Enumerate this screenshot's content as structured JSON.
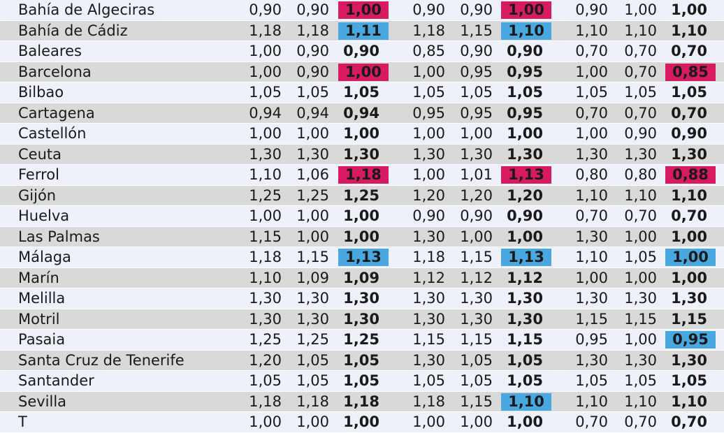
{
  "colors": {
    "row_light": "#eef1f9",
    "row_dark": "#d9d9d9",
    "magenta": "#d81b60",
    "blue": "#4aa8e0"
  },
  "rows": [
    {
      "port": "Bahía de Algeciras",
      "v": [
        "0,90",
        "0,90",
        "1,00",
        "0,90",
        "0,90",
        "1,00",
        "0,90",
        "1,00",
        "1,00"
      ],
      "hl": [
        null,
        null,
        "magenta",
        null,
        null,
        "magenta",
        null,
        null,
        null
      ]
    },
    {
      "port": "Bahía de Cádiz",
      "v": [
        "1,18",
        "1,18",
        "1,11",
        "1,18",
        "1,15",
        "1,10",
        "1,10",
        "1,10",
        "1,10"
      ],
      "hl": [
        null,
        null,
        "blue",
        null,
        null,
        "blue",
        null,
        null,
        null
      ]
    },
    {
      "port": "Baleares",
      "v": [
        "1,00",
        "0,90",
        "0,90",
        "0,85",
        "0,90",
        "0,90",
        "0,70",
        "0,70",
        "0,70"
      ],
      "hl": [
        null,
        null,
        null,
        null,
        null,
        null,
        null,
        null,
        null
      ]
    },
    {
      "port": "Barcelona",
      "v": [
        "1,00",
        "0,90",
        "1,00",
        "1,00",
        "0,95",
        "0,95",
        "1,00",
        "0,70",
        "0,85"
      ],
      "hl": [
        null,
        null,
        "magenta",
        null,
        null,
        null,
        null,
        null,
        "magenta"
      ]
    },
    {
      "port": "Bilbao",
      "v": [
        "1,05",
        "1,05",
        "1,05",
        "1,05",
        "1,05",
        "1,05",
        "1,05",
        "1,05",
        "1,05"
      ],
      "hl": [
        null,
        null,
        null,
        null,
        null,
        null,
        null,
        null,
        null
      ]
    },
    {
      "port": "Cartagena",
      "v": [
        "0,94",
        "0,94",
        "0,94",
        "0,95",
        "0,95",
        "0,95",
        "0,70",
        "0,70",
        "0,70"
      ],
      "hl": [
        null,
        null,
        null,
        null,
        null,
        null,
        null,
        null,
        null
      ]
    },
    {
      "port": "Castellón",
      "v": [
        "1,00",
        "1,00",
        "1,00",
        "1,00",
        "1,00",
        "1,00",
        "1,00",
        "0,90",
        "0,90"
      ],
      "hl": [
        null,
        null,
        null,
        null,
        null,
        null,
        null,
        null,
        null
      ]
    },
    {
      "port": "Ceuta",
      "v": [
        "1,30",
        "1,30",
        "1,30",
        "1,30",
        "1,30",
        "1,30",
        "1,30",
        "1,30",
        "1,30"
      ],
      "hl": [
        null,
        null,
        null,
        null,
        null,
        null,
        null,
        null,
        null
      ]
    },
    {
      "port": "Ferrol",
      "v": [
        "1,10",
        "1,06",
        "1,18",
        "1,00",
        "1,01",
        "1,13",
        "0,80",
        "0,80",
        "0,88"
      ],
      "hl": [
        null,
        null,
        "magenta",
        null,
        null,
        "magenta",
        null,
        null,
        "magenta"
      ]
    },
    {
      "port": "Gijón",
      "v": [
        "1,25",
        "1,25",
        "1,25",
        "1,20",
        "1,20",
        "1,20",
        "1,10",
        "1,10",
        "1,10"
      ],
      "hl": [
        null,
        null,
        null,
        null,
        null,
        null,
        null,
        null,
        null
      ]
    },
    {
      "port": "Huelva",
      "v": [
        "1,00",
        "1,00",
        "1,00",
        "0,90",
        "0,90",
        "0,90",
        "0,70",
        "0,70",
        "0,70"
      ],
      "hl": [
        null,
        null,
        null,
        null,
        null,
        null,
        null,
        null,
        null
      ]
    },
    {
      "port": "Las Palmas",
      "v": [
        "1,15",
        "1,00",
        "1,00",
        "1,30",
        "1,00",
        "1,00",
        "1,30",
        "1,00",
        "1,00"
      ],
      "hl": [
        null,
        null,
        null,
        null,
        null,
        null,
        null,
        null,
        null
      ]
    },
    {
      "port": "Málaga",
      "v": [
        "1,18",
        "1,15",
        "1,13",
        "1,18",
        "1,15",
        "1,13",
        "1,10",
        "1,05",
        "1,00"
      ],
      "hl": [
        null,
        null,
        "blue",
        null,
        null,
        "blue",
        null,
        null,
        "blue"
      ]
    },
    {
      "port": "Marín",
      "v": [
        "1,10",
        "1,09",
        "1,09",
        "1,12",
        "1,12",
        "1,12",
        "1,00",
        "1,00",
        "1,00"
      ],
      "hl": [
        null,
        null,
        null,
        null,
        null,
        null,
        null,
        null,
        null
      ]
    },
    {
      "port": "Melilla",
      "v": [
        "1,30",
        "1,30",
        "1,30",
        "1,30",
        "1,30",
        "1,30",
        "1,30",
        "1,30",
        "1,30"
      ],
      "hl": [
        null,
        null,
        null,
        null,
        null,
        null,
        null,
        null,
        null
      ]
    },
    {
      "port": "Motril",
      "v": [
        "1,30",
        "1,30",
        "1,30",
        "1,30",
        "1,30",
        "1,30",
        "1,15",
        "1,15",
        "1,15"
      ],
      "hl": [
        null,
        null,
        null,
        null,
        null,
        null,
        null,
        null,
        null
      ]
    },
    {
      "port": "Pasaia",
      "v": [
        "1,25",
        "1,25",
        "1,25",
        "1,15",
        "1,15",
        "1,15",
        "0,95",
        "1,00",
        "0,95"
      ],
      "hl": [
        null,
        null,
        null,
        null,
        null,
        null,
        null,
        null,
        "blue"
      ]
    },
    {
      "port": "Santa Cruz de Tenerife",
      "v": [
        "1,20",
        "1,05",
        "1,05",
        "1,30",
        "1,05",
        "1,05",
        "1,30",
        "1,30",
        "1,30"
      ],
      "hl": [
        null,
        null,
        null,
        null,
        null,
        null,
        null,
        null,
        null
      ]
    },
    {
      "port": "Santander",
      "v": [
        "1,05",
        "1,05",
        "1,05",
        "1,05",
        "1,05",
        "1,05",
        "1,05",
        "1,05",
        "1,05"
      ],
      "hl": [
        null,
        null,
        null,
        null,
        null,
        null,
        null,
        null,
        null
      ]
    },
    {
      "port": "Sevilla",
      "v": [
        "1,18",
        "1,18",
        "1,18",
        "1,18",
        "1,15",
        "1,10",
        "1,10",
        "1,10",
        "1,10"
      ],
      "hl": [
        null,
        null,
        null,
        null,
        null,
        "blue",
        null,
        null,
        null
      ]
    },
    {
      "port": "T",
      "v": [
        "1,00",
        "1,00",
        "1,00",
        "1,00",
        "1,00",
        "1,00",
        "0,70",
        "0,70",
        "0,70"
      ],
      "hl": [
        null,
        null,
        null,
        null,
        null,
        null,
        null,
        null,
        null
      ]
    }
  ]
}
